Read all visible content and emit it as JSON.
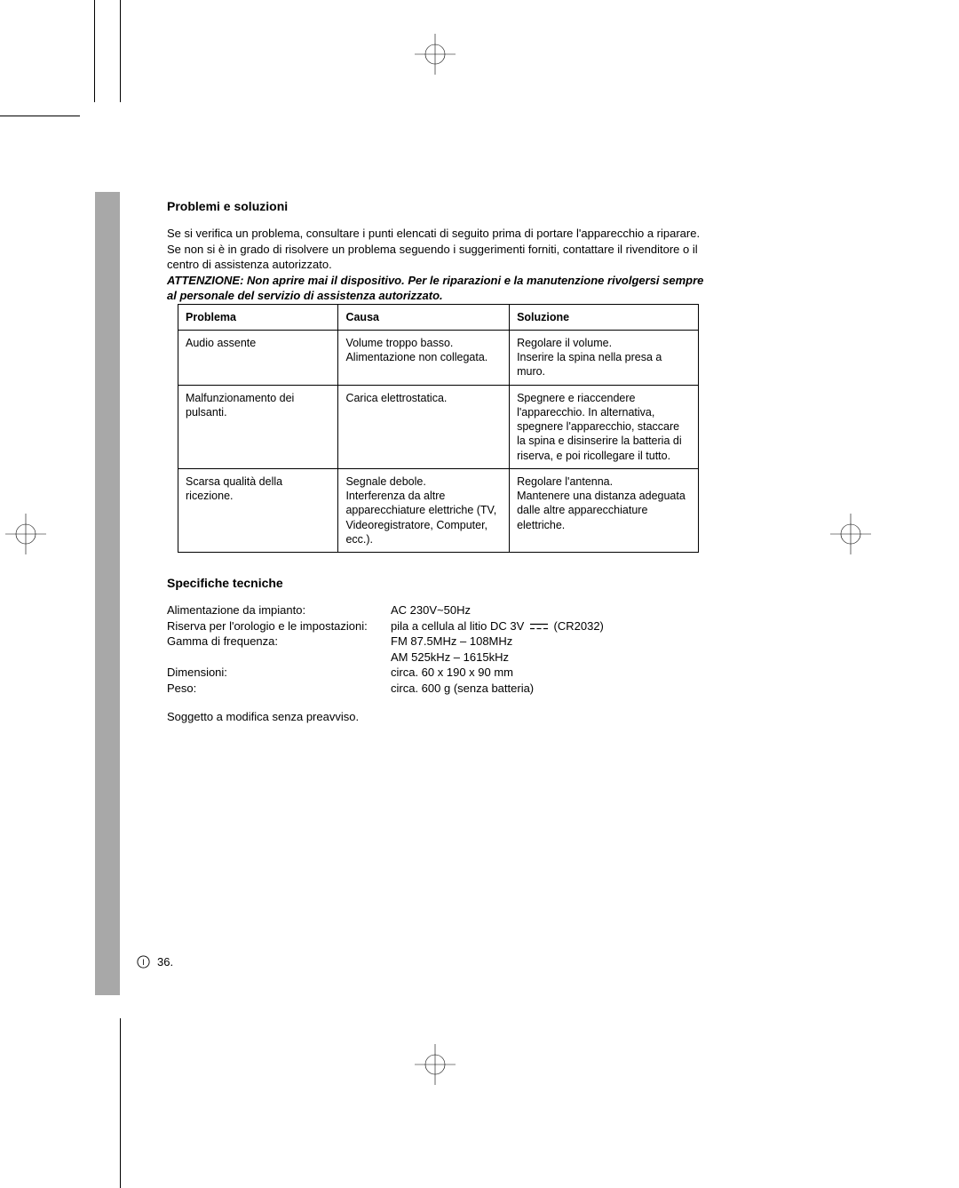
{
  "page": {
    "number": "36."
  },
  "sections": {
    "troubleshooting_title": "Problemi e soluzioni",
    "specs_title": "Specifiche tecniche"
  },
  "intro": {
    "p1": "Se si verifica un problema, consultare i punti elencati di seguito prima di portare l'apparecchio a riparare.",
    "p2": "Se non si è in grado di risolvere un problema seguendo i suggerimenti forniti, contattare il rivenditore o il centro di assistenza autorizzato.",
    "warning": "ATTENZIONE: Non aprire mai il dispositivo. Per le riparazioni e la manutenzione rivolgersi sempre al personale del servizio di assistenza autorizzato."
  },
  "table": {
    "headers": {
      "problem": "Problema",
      "cause": "Causa",
      "solution": "Soluzione"
    },
    "rows": [
      {
        "problem": "Audio assente",
        "cause": "Volume troppo basso.\nAlimentazione non collegata.",
        "solution": "Regolare il volume.\nInserire la spina nella presa a muro."
      },
      {
        "problem": "Malfunzionamento dei pulsanti.",
        "cause": "Carica elettrostatica.",
        "solution": "Spegnere e riaccendere l'apparecchio. In alternativa, spegnere l'apparecchio, staccare la spina e disinserire la batteria di riserva, e poi ricollegare il tutto."
      },
      {
        "problem": "Scarsa qualità della ricezione.",
        "cause": "Segnale debole.\nInterferenza da altre apparecchiature elettriche (TV, Videoregistratore, Computer, ecc.).",
        "solution": "Regolare l'antenna.\nMantenere una distanza adeguata dalle altre apparecchiature elettriche."
      }
    ]
  },
  "specs": {
    "rows": [
      {
        "label": "Alimentazione da impianto:",
        "value": "AC 230V~50Hz"
      },
      {
        "label": "Riserva per l'orologio e le impostazioni:",
        "value_pre": "pila a cellula al litio DC 3V",
        "value_post": "(CR2032)",
        "dc_symbol": true
      },
      {
        "label": "Gamma di frequenza:",
        "value": "FM 87.5MHz – 108MHz"
      },
      {
        "label": "",
        "value": "AM 525kHz – 1615kHz"
      },
      {
        "label": "Dimensioni:",
        "value": "circa. 60 x 190 x 90 mm"
      },
      {
        "label": "Peso:",
        "value": "circa. 600 g (senza batteria)"
      }
    ],
    "note": "Soggetto a modifica senza preavviso."
  },
  "colors": {
    "page_bg": "#ffffff",
    "text": "#000000",
    "gray_tab": "#a8a8a8",
    "border": "#000000"
  }
}
